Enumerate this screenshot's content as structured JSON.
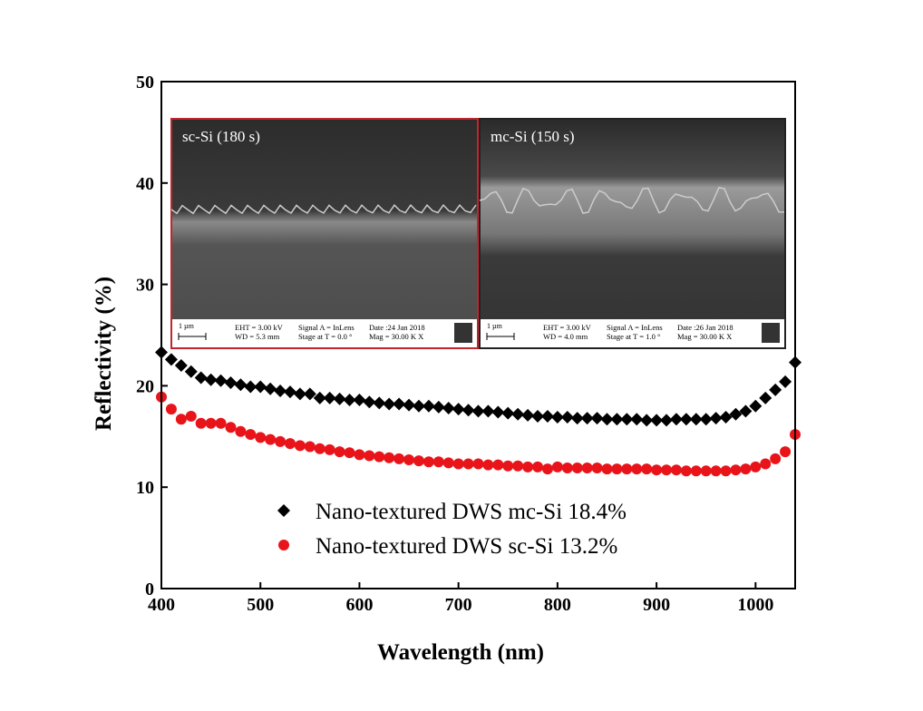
{
  "chart_data": {
    "type": "scatter",
    "xlabel": "Wavelength (nm)",
    "ylabel": "Reflectivity (%)",
    "xlim": [
      400,
      1040
    ],
    "ylim": [
      0,
      50
    ],
    "xticks": [
      400,
      500,
      600,
      700,
      800,
      900,
      1000
    ],
    "yticks": [
      0,
      10,
      20,
      30,
      40,
      50
    ],
    "grid": false,
    "legend_placement": "bottom-center",
    "x": [
      400,
      410,
      420,
      430,
      440,
      450,
      460,
      470,
      480,
      490,
      500,
      510,
      520,
      530,
      540,
      550,
      560,
      570,
      580,
      590,
      600,
      610,
      620,
      630,
      640,
      650,
      660,
      670,
      680,
      690,
      700,
      710,
      720,
      730,
      740,
      750,
      760,
      770,
      780,
      790,
      800,
      810,
      820,
      830,
      840,
      850,
      860,
      870,
      880,
      890,
      900,
      910,
      920,
      930,
      940,
      950,
      960,
      970,
      980,
      990,
      1000,
      1010,
      1020,
      1030,
      1040
    ],
    "series": [
      {
        "name": "Nano-textured DWS mc-Si 18.4%",
        "marker": "diamond",
        "color": "#000000",
        "values": [
          23.3,
          22.6,
          22.0,
          21.4,
          20.8,
          20.6,
          20.5,
          20.3,
          20.1,
          19.9,
          19.9,
          19.7,
          19.5,
          19.4,
          19.2,
          19.2,
          18.8,
          18.8,
          18.7,
          18.6,
          18.6,
          18.4,
          18.3,
          18.2,
          18.2,
          18.1,
          18.0,
          18.0,
          17.9,
          17.8,
          17.7,
          17.6,
          17.5,
          17.5,
          17.4,
          17.3,
          17.2,
          17.1,
          17.0,
          17.0,
          16.9,
          16.9,
          16.8,
          16.8,
          16.8,
          16.7,
          16.7,
          16.7,
          16.7,
          16.6,
          16.6,
          16.6,
          16.7,
          16.7,
          16.7,
          16.7,
          16.8,
          16.9,
          17.2,
          17.5,
          18.0,
          18.8,
          19.6,
          20.4,
          22.3
        ]
      },
      {
        "name": "Nano-textured DWS sc-Si 13.2%",
        "marker": "circle",
        "color": "#e8141a",
        "values": [
          18.9,
          17.7,
          16.7,
          17.0,
          16.3,
          16.3,
          16.3,
          15.9,
          15.5,
          15.2,
          14.9,
          14.7,
          14.5,
          14.3,
          14.1,
          14.0,
          13.8,
          13.7,
          13.5,
          13.4,
          13.2,
          13.1,
          13.0,
          12.9,
          12.8,
          12.7,
          12.6,
          12.5,
          12.5,
          12.4,
          12.3,
          12.3,
          12.3,
          12.2,
          12.2,
          12.1,
          12.1,
          12.0,
          12.0,
          11.8,
          12.0,
          11.9,
          11.9,
          11.9,
          11.9,
          11.8,
          11.8,
          11.8,
          11.8,
          11.8,
          11.7,
          11.7,
          11.7,
          11.6,
          11.6,
          11.6,
          11.6,
          11.6,
          11.7,
          11.8,
          12.0,
          12.3,
          12.8,
          13.5,
          15.2
        ]
      }
    ]
  },
  "insets": [
    {
      "label": "sc-Si (180 s)",
      "border": "#c0262b",
      "scale": "1 µm",
      "eht": "EHT = 3.00 kV",
      "wd": "WD = 5.3 mm",
      "signal": "Signal A = InLens",
      "stage": "Stage at T = 0.0 °",
      "date": "Date :24 Jan 2018",
      "mag": "Mag = 30.00 K X",
      "logo": "ZEISS"
    },
    {
      "label": "mc-Si (150 s)",
      "border": "#222222",
      "scale": "1 µm",
      "eht": "EHT = 3.00 kV",
      "wd": "WD = 4.0 mm",
      "signal": "Signal A = InLens",
      "stage": "Stage at T = 1.0 °",
      "date": "Date :26 Jan 2018",
      "mag": "Mag = 30.00 K X",
      "logo": "ZEISS"
    }
  ]
}
